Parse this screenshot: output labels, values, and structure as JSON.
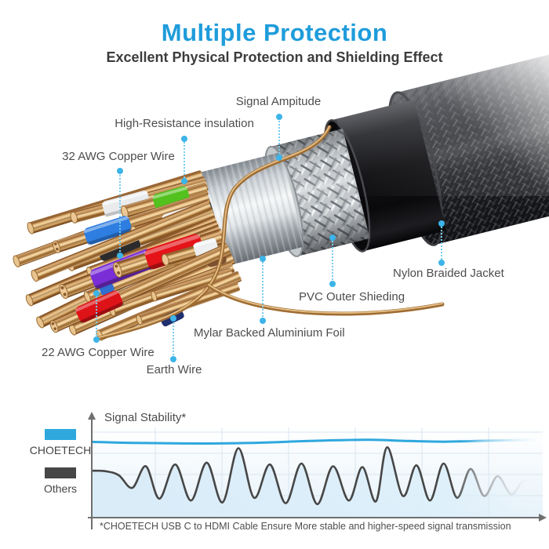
{
  "header": {
    "title": "Multiple Protection",
    "subtitle": "Excellent Physical Protection and Shielding Effect"
  },
  "diagram": {
    "labels": {
      "signal_amplitude": "Signal Ampitude",
      "insulation": "High-Resistance insulation",
      "copper32": "32 AWG Copper Wire",
      "nylon": "Nylon Braided Jacket",
      "pvc": "PVC Outer Shieding",
      "mylar": "Mylar Backed Aluminium Foil",
      "earth": "Earth Wire",
      "copper22": "22 AWG Copper Wire"
    }
  },
  "colors": {
    "accent_blue": "#1F9CDB",
    "leader_dot": "#3CB4E9",
    "choetech_line": "#2FA8DE",
    "others_line": "#474747"
  },
  "chart_data": {
    "type": "line",
    "title": "Signal Stability*",
    "xlabel": "",
    "ylabel": "Signal Stability",
    "x_range": [
      0,
      100
    ],
    "y_range": [
      0,
      100
    ],
    "grid": true,
    "legend_position": "left",
    "series": [
      {
        "name": "CHOETECH",
        "color": "#2FA8DE",
        "points": [
          [
            0,
            84
          ],
          [
            8,
            83
          ],
          [
            16,
            82.5
          ],
          [
            24,
            82.2
          ],
          [
            32,
            82.5
          ],
          [
            40,
            83.5
          ],
          [
            48,
            85
          ],
          [
            56,
            86
          ],
          [
            62,
            86.3
          ],
          [
            70,
            85
          ],
          [
            78,
            84.2
          ],
          [
            84,
            84.8
          ],
          [
            90,
            85.6
          ],
          [
            95,
            86
          ],
          [
            100,
            86
          ]
        ]
      },
      {
        "name": "Others",
        "color": "#474747",
        "points": [
          [
            0,
            52
          ],
          [
            3,
            51.5
          ],
          [
            6,
            47
          ],
          [
            9,
            33
          ],
          [
            12,
            57
          ],
          [
            15,
            21
          ],
          [
            18.5,
            59
          ],
          [
            22,
            19
          ],
          [
            25.5,
            61
          ],
          [
            29,
            17
          ],
          [
            32.5,
            77
          ],
          [
            36,
            22
          ],
          [
            39.5,
            59
          ],
          [
            43,
            16
          ],
          [
            46.5,
            60
          ],
          [
            50,
            15
          ],
          [
            53.5,
            57
          ],
          [
            57,
            19
          ],
          [
            60,
            56
          ],
          [
            63,
            18
          ],
          [
            65.5,
            78
          ],
          [
            69,
            24
          ],
          [
            72,
            58
          ],
          [
            75,
            19
          ],
          [
            78,
            60
          ],
          [
            81,
            22
          ],
          [
            84,
            54
          ],
          [
            87,
            24
          ],
          [
            90,
            46
          ],
          [
            93,
            26
          ],
          [
            96,
            41
          ],
          [
            100,
            30
          ]
        ]
      }
    ],
    "footnote": "*CHOETECH USB C to HDMI Cable Ensure More stable and higher-speed signal transmission"
  }
}
